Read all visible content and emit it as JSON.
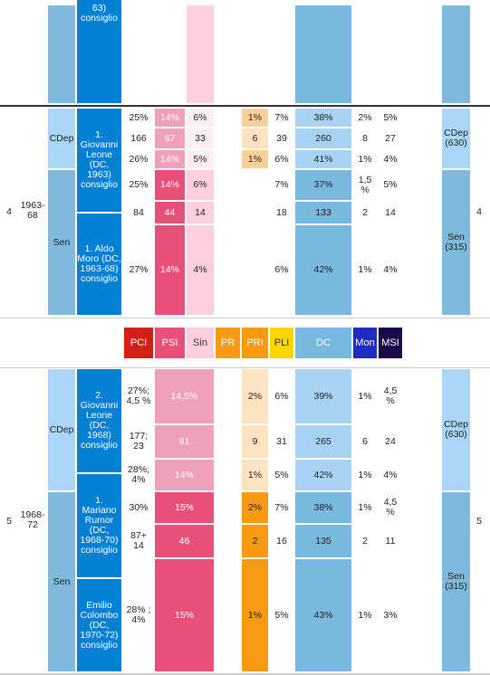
{
  "top": {
    "gov_text": "63)\nconsiglio"
  },
  "leg4": {
    "num": "4",
    "years": "1963-68",
    "num_right": "4",
    "cdep": {
      "label": "CDep",
      "label_right": "CDep (630)"
    },
    "sen": {
      "label": "Sen",
      "label_right": "Sen (315)"
    },
    "gov1": "1. Giovanni Leone (DC, 1963) consiglio",
    "gov2": "1. Aldo Moro (DC, 1963-68) consiglio",
    "rows": [
      {
        "pci": "25%",
        "psi": "14%",
        "sin": "6%",
        "pri": "1%",
        "pli": "7%",
        "dc": "38%",
        "mon": "2%",
        "msi": "5%"
      },
      {
        "pci": "166",
        "psi": "87",
        "sin": "33",
        "pri": "6",
        "pli": "39",
        "dc": "260",
        "mon": "8",
        "msi": "27"
      },
      {
        "pci": "26%",
        "psi": "14%",
        "sin": "5%",
        "pri": "1%",
        "pli": "6%",
        "dc": "41%",
        "mon": "1%",
        "msi": "4%"
      },
      {
        "pci": "25%",
        "psi": "14%",
        "sin": "6%",
        "pri": "",
        "pli": "7%",
        "dc": "37%",
        "mon": "1,5 %",
        "msi": "5%"
      },
      {
        "pci": "84",
        "psi": "44",
        "sin": "14",
        "pri": "",
        "pli": "18",
        "dc": "133",
        "mon": "2",
        "msi": "14"
      },
      {
        "pci": "27%",
        "psi": "14%",
        "sin": "4%",
        "pri": "",
        "pli": "6%",
        "dc": "42%",
        "mon": "1%",
        "msi": "4%"
      }
    ]
  },
  "header": {
    "pci": "PCI",
    "psi": "PSI",
    "sin": "Sin",
    "pr": "PR",
    "pri": "PRI",
    "pli": "PLI",
    "dc": "DC",
    "mon": "Mon",
    "msi": "MSI"
  },
  "leg5": {
    "num": "5",
    "years": "1968-72",
    "num_right": "5",
    "cdep": {
      "label": "CDep",
      "label_right": "CDep (630)"
    },
    "sen": {
      "label": "Sen",
      "label_right": "Sen (315)"
    },
    "gov1": "2. Giovanni Leone (DC, 1968) consiglio",
    "gov2": "1. Mariano Rumor (DC, 1968-70) consiglio",
    "gov3": "Emilio Colombo (DC, 1970-72) consiglio",
    "rows": [
      {
        "pci": "27%; 4,5 %",
        "psi": "14,5%",
        "pri": "2%",
        "pli": "6%",
        "dc": "39%",
        "mon": "1%",
        "msi": "4,5 %"
      },
      {
        "pci": "177; 23",
        "psi": "91",
        "pri": "9",
        "pli": "31",
        "dc": "265",
        "mon": "6",
        "msi": "24"
      },
      {
        "pci": "28%; 4%",
        "psi": "14%",
        "pri": "1%",
        "pli": "5%",
        "dc": "42%",
        "mon": "1%",
        "msi": "4%"
      },
      {
        "pci": "30%",
        "psi": "15%",
        "pri": "2%",
        "pli": "7%",
        "dc": "38%",
        "mon": "1%",
        "msi": "4,5 %"
      },
      {
        "pci": "87+ 14",
        "psi": "46",
        "pri": "2",
        "pli": "16",
        "dc": "135",
        "mon": "2",
        "msi": "11"
      },
      {
        "pci": "28% ; 4%",
        "psi": "15%",
        "pri": "1%",
        "pli": "5%",
        "dc": "43%",
        "mon": "1%",
        "msi": "3%"
      }
    ]
  },
  "colors": {
    "pci": "#d32017",
    "psi": "#e8507a",
    "sin": "#ffcfdf",
    "pr": "#f99a12",
    "pri": "#f99a12",
    "pli": "#ffd700",
    "dc": "#79b9e0",
    "mon": "#1f2cc2",
    "msi": "#1a0a4a"
  }
}
